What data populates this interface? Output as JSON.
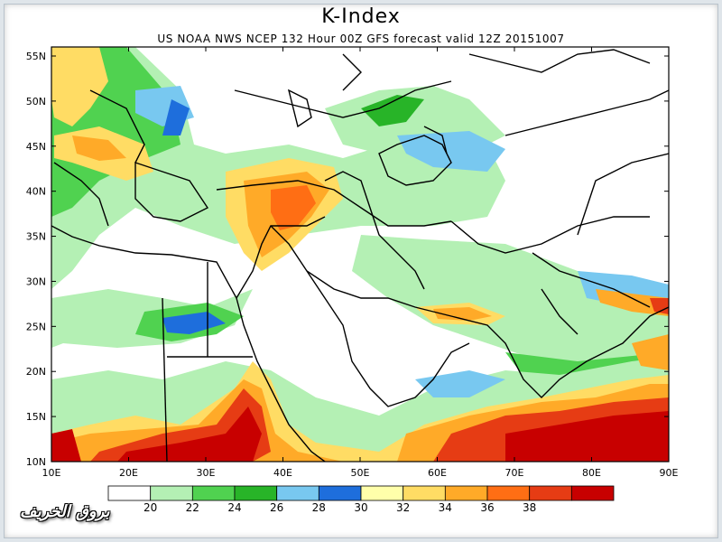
{
  "map": {
    "title": "K-Index",
    "subtitle": "US NOAA NWS NCEP 132 Hour 00Z GFS forecast valid 12Z 20151007",
    "lon_labels": [
      "10E",
      "20E",
      "30E",
      "40E",
      "50E",
      "60E",
      "70E",
      "80E",
      "90E"
    ],
    "lat_labels": [
      "55N",
      "50N",
      "45N",
      "40N",
      "35N",
      "30N",
      "25N",
      "20N",
      "15N",
      "10N"
    ],
    "colorbar": {
      "colors": [
        "#ffffff",
        "#b4f0b4",
        "#50d250",
        "#28b428",
        "#78c8f0",
        "#1e6edc",
        "#ffffaa",
        "#ffdc64",
        "#ffaa28",
        "#ff6e14",
        "#e63c14",
        "#c80000"
      ],
      "labels": [
        "20",
        "22",
        "24",
        "26",
        "28",
        "30",
        "32",
        "34",
        "36",
        "38"
      ]
    },
    "watermark": "بروق الخريف"
  }
}
